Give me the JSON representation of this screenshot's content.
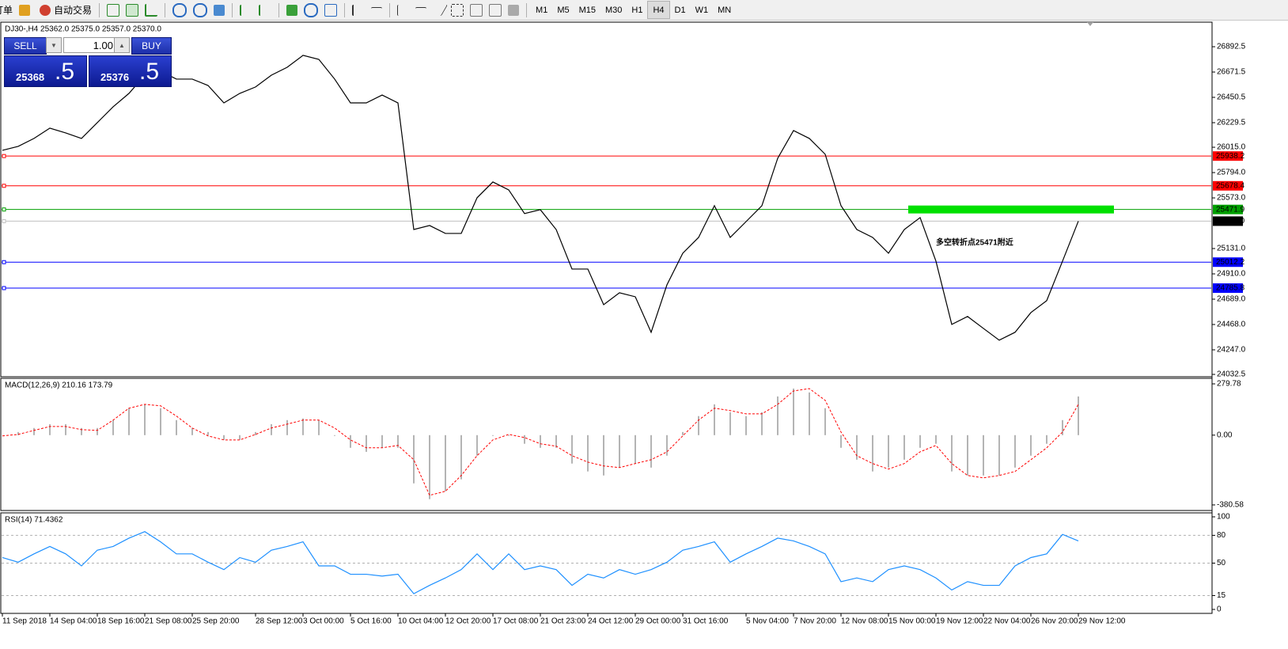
{
  "toolbar": {
    "items": [
      "订单",
      "自动交易"
    ],
    "timeframes": [
      "M1",
      "M5",
      "M15",
      "M30",
      "H1",
      "H4",
      "D1",
      "W1",
      "MN"
    ],
    "active": "H4"
  },
  "trade_panel": {
    "sell": "SELL",
    "buy": "BUY",
    "lot": "1.00",
    "sell_price": "25368",
    "sell_frac": ".5",
    "buy_price": "25376",
    "buy_frac": ".5"
  },
  "chart_data": [
    {
      "type": "line",
      "title": "DJ30-,H4  25362.0 25375.0 25357.0 25370.0",
      "color": "#000000",
      "categories": [
        "11 Sep 2018",
        null,
        null,
        "14 Sep 04:00",
        null,
        null,
        "18 Sep 16:00",
        null,
        null,
        "21 Sep 08:00",
        null,
        null,
        "25 Sep 20:00",
        null,
        null,
        null,
        "28 Sep 12:00",
        null,
        null,
        "3 Oct 00:00",
        null,
        null,
        "5 Oct 16:00",
        null,
        null,
        "10 Oct 04:00",
        null,
        null,
        "12 Oct 20:00",
        null,
        null,
        "17 Oct 08:00",
        null,
        null,
        "21 Oct 23:00",
        null,
        null,
        "24 Oct 12:00",
        null,
        null,
        "29 Oct 00:00",
        null,
        null,
        "31 Oct 16:00",
        null,
        null,
        null,
        "5 Nov 04:00",
        null,
        null,
        "7 Nov 20:00",
        null,
        null,
        "12 Nov 08:00",
        null,
        null,
        "15 Nov 00:00",
        null,
        null,
        "19 Nov 12:00",
        null,
        null,
        "22 Nov 04:00",
        null,
        null,
        "26 Nov 20:00",
        null,
        null,
        "29 Nov 12:00"
      ],
      "values": [
        25988,
        26023,
        26092,
        26182,
        26140,
        26092,
        26230,
        26368,
        26485,
        26644,
        26679,
        26610,
        26610,
        26554,
        26402,
        26485,
        26541,
        26644,
        26713,
        26817,
        26782,
        26610,
        26402,
        26402,
        26471,
        26402,
        25297,
        25332,
        25263,
        25263,
        25574,
        25712,
        25643,
        25436,
        25470,
        25297,
        24952,
        24952,
        24641,
        24745,
        24710,
        24400,
        24814,
        25090,
        25228,
        25505,
        25228,
        25366,
        25505,
        25919,
        26161,
        26092,
        25954,
        25505,
        25297,
        25228,
        25090,
        25297,
        25401,
        25021,
        24469,
        24538,
        24434,
        24331,
        24400,
        24572,
        24676,
        25021,
        25370
      ],
      "ylim": [
        24019,
        27093
      ],
      "yticks": [
        26892.5,
        26671.5,
        26450.5,
        26229.5,
        {
          "value": 26015,
          "label": "26015.0"
        },
        {
          "value": 25794,
          "label": "25794.0"
        },
        {
          "value": 25573,
          "label": "25573.0"
        },
        {
          "value": 25131,
          "label": "25131.0"
        },
        {
          "value": 24910,
          "label": "24910.0"
        },
        {
          "value": 24689,
          "label": "24689.0"
        },
        {
          "value": 24468,
          "label": "24468.0"
        },
        {
          "value": 24247,
          "label": "24247.0"
        },
        24032.5
      ],
      "levels": [
        {
          "value": 25938.2,
          "color": "#ff0000"
        },
        {
          "value": 25678.4,
          "color": "#ff0000"
        },
        {
          "value": 25471.9,
          "color": "#00a000"
        },
        {
          "value": 25370,
          "label": "25370.0",
          "color": "#c0c0c0",
          "box": "#000000"
        },
        {
          "value": 25012.2,
          "color": "#0000ff"
        },
        {
          "value": 24785.8,
          "color": "#0000ff"
        }
      ],
      "annotation": {
        "text": "多空转折点25471附近",
        "color": "#00e000"
      }
    },
    {
      "type": "macd",
      "title": "MACD(12,26,9) 210.16 173.79",
      "histogram_color": "#b4b4b4",
      "signal_color": "#ff0000",
      "histogram": [
        0,
        17,
        39,
        60,
        60,
        39,
        39,
        82,
        147,
        168,
        147,
        82,
        39,
        17,
        -26,
        -26,
        17,
        60,
        82,
        91,
        82,
        -4,
        -69,
        -91,
        -69,
        -69,
        -263,
        -349,
        -306,
        -241,
        -112,
        -4,
        -4,
        -47,
        -69,
        -69,
        -155,
        -198,
        -220,
        -177,
        -155,
        -177,
        -112,
        17,
        104,
        168,
        125,
        104,
        125,
        211,
        254,
        233,
        147,
        -69,
        -134,
        -198,
        -177,
        -134,
        -69,
        -47,
        -198,
        -220,
        -220,
        -220,
        -177,
        -112,
        -47,
        82,
        211
      ],
      "signal": [
        -4,
        4,
        26,
        47,
        47,
        30,
        26,
        82,
        147,
        168,
        160,
        104,
        39,
        -4,
        -26,
        -26,
        4,
        39,
        60,
        82,
        82,
        39,
        -26,
        -69,
        -69,
        -56,
        -134,
        -328,
        -306,
        -220,
        -112,
        -26,
        4,
        -13,
        -47,
        -60,
        -112,
        -147,
        -168,
        -177,
        -155,
        -134,
        -91,
        -4,
        82,
        147,
        134,
        116,
        116,
        168,
        241,
        254,
        190,
        17,
        -112,
        -155,
        -185,
        -155,
        -91,
        -56,
        -155,
        -220,
        -233,
        -220,
        -198,
        -134,
        -69,
        17,
        168
      ],
      "ylim": [
        -411,
        310
      ],
      "yticks": [
        279.78,
        {
          "value": 0,
          "label": "0.00"
        },
        -380.58
      ]
    },
    {
      "type": "line",
      "title": "RSI(14) 71.4362",
      "color": "#1e90ff",
      "values": [
        56,
        51,
        60,
        68,
        60,
        47,
        64,
        68,
        77,
        84,
        73,
        60,
        60,
        51,
        43,
        56,
        51,
        64,
        68,
        73,
        47,
        47,
        38,
        38,
        36,
        38,
        17,
        26,
        34,
        43,
        60,
        43,
        60,
        43,
        47,
        43,
        26,
        38,
        34,
        43,
        38,
        43,
        51,
        64,
        68,
        73,
        51,
        60,
        68,
        77,
        74,
        68,
        60,
        30,
        34,
        30,
        43,
        47,
        43,
        34,
        21,
        30,
        26,
        26,
        47,
        56,
        60,
        81,
        74
      ],
      "ylim": [
        0,
        100
      ],
      "yticks": [
        100,
        80,
        50,
        15,
        0
      ],
      "grid": "dashed"
    }
  ]
}
